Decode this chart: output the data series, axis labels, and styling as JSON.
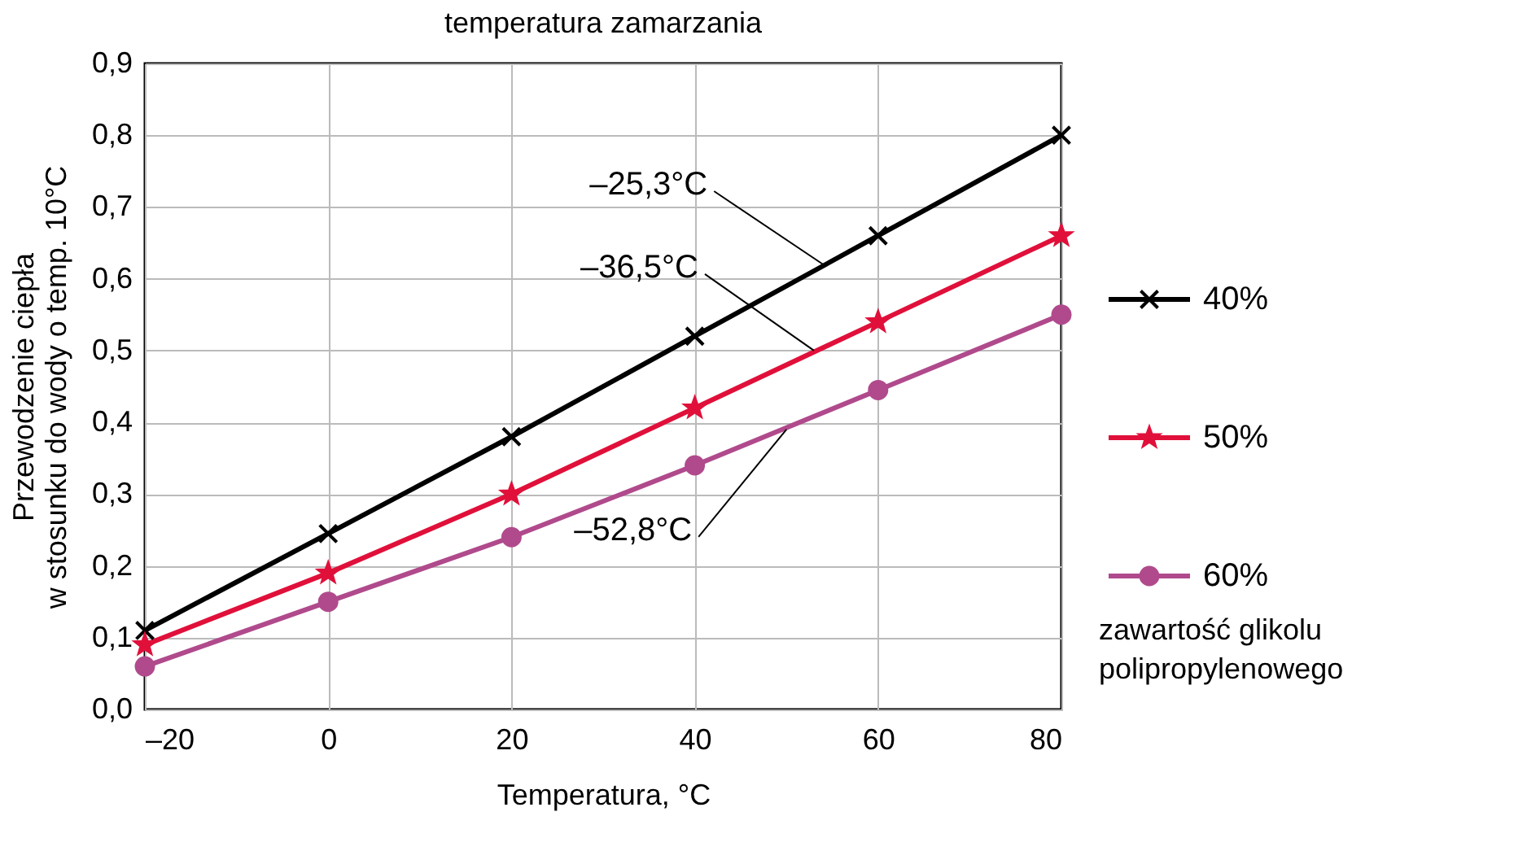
{
  "chart_data": {
    "type": "line",
    "title": "temperatura zamarzania",
    "xlabel": "Temperatura, °C",
    "ylabel": "Przewodzenie ciepła\nw stosunku do wody o temp. 10°C",
    "legend_title": "zawartość glikolu polipropylenowego",
    "x": [
      -20,
      0,
      20,
      40,
      60,
      80
    ],
    "series": [
      {
        "name": "40%",
        "color": "#000000",
        "marker": "cross",
        "values": [
          0.11,
          0.245,
          0.38,
          0.52,
          0.66,
          0.8
        ]
      },
      {
        "name": "50%",
        "color": "#e0103a",
        "marker": "star",
        "values": [
          0.09,
          0.19,
          0.3,
          0.42,
          0.54,
          0.66
        ]
      },
      {
        "name": "60%",
        "color": "#b04a8c",
        "marker": "circle",
        "values": [
          0.06,
          0.15,
          0.24,
          0.34,
          0.445,
          0.55
        ]
      }
    ],
    "annotations": [
      {
        "text": "–25,3°C",
        "x": 54,
        "y": 0.62
      },
      {
        "text": "–36,5°C",
        "x": 53,
        "y": 0.5
      },
      {
        "text": "–52,8°C",
        "x": 50,
        "y": 0.39
      }
    ],
    "xlim": [
      -20,
      80
    ],
    "xticks": [
      {
        "value": -20,
        "label": "–20"
      },
      0,
      20,
      40,
      60,
      80
    ],
    "ylim": [
      0,
      0.9
    ],
    "yticks": [
      {
        "value": 0,
        "label": "0,0"
      },
      {
        "value": 0.1,
        "label": "0,1"
      },
      {
        "value": 0.2,
        "label": "0,2"
      },
      {
        "value": 0.3,
        "label": "0,3"
      },
      {
        "value": 0.4,
        "label": "0,4"
      },
      {
        "value": 0.5,
        "label": "0,5"
      },
      {
        "value": 0.6,
        "label": "0,6"
      },
      {
        "value": 0.7,
        "label": "0,7"
      },
      {
        "value": 0.8,
        "label": "0,8"
      },
      {
        "value": 0.9,
        "label": "0,9"
      }
    ],
    "grid": true,
    "legend": "right"
  }
}
